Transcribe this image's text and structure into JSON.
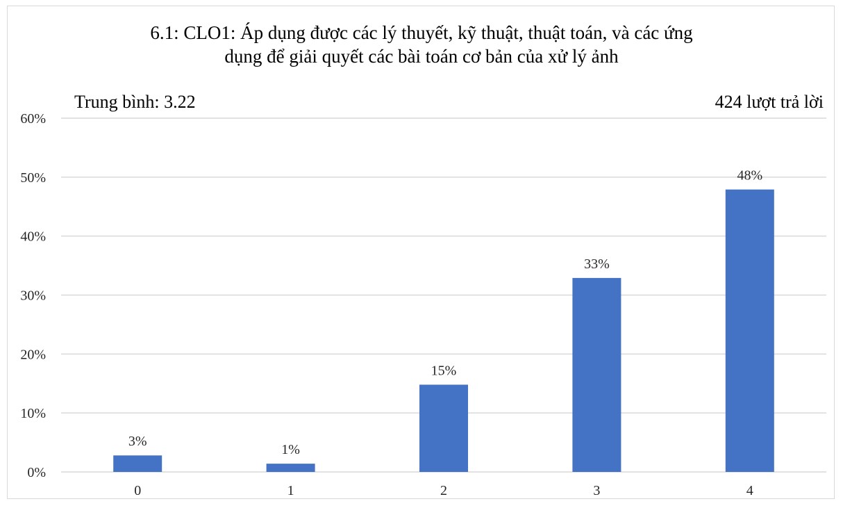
{
  "chart_data": {
    "type": "bar",
    "title_lines": [
      "6.1: CLO1: Áp dụng được các lý thuyết, kỹ thuật, thuật toán, và các ứng",
      "dụng để giải quyết các bài toán cơ bản của xử lý ảnh"
    ],
    "average_label": "Trung bình: 3.22",
    "responses_label": "424 lượt trả lời",
    "categories": [
      "0",
      "1",
      "2",
      "3",
      "4"
    ],
    "values": [
      2.8,
      1.4,
      14.8,
      32.9,
      47.9
    ],
    "data_labels": [
      "3%",
      "1%",
      "15%",
      "33%",
      "48%"
    ],
    "ylim": [
      0,
      60
    ],
    "yticks": [
      "0%",
      "10%",
      "20%",
      "30%",
      "40%",
      "50%",
      "60%"
    ],
    "ytick_values": [
      0,
      10,
      20,
      30,
      40,
      50,
      60
    ],
    "bar_color": "#4472c4",
    "grid_color": "#d9d9d9",
    "grid": true
  }
}
